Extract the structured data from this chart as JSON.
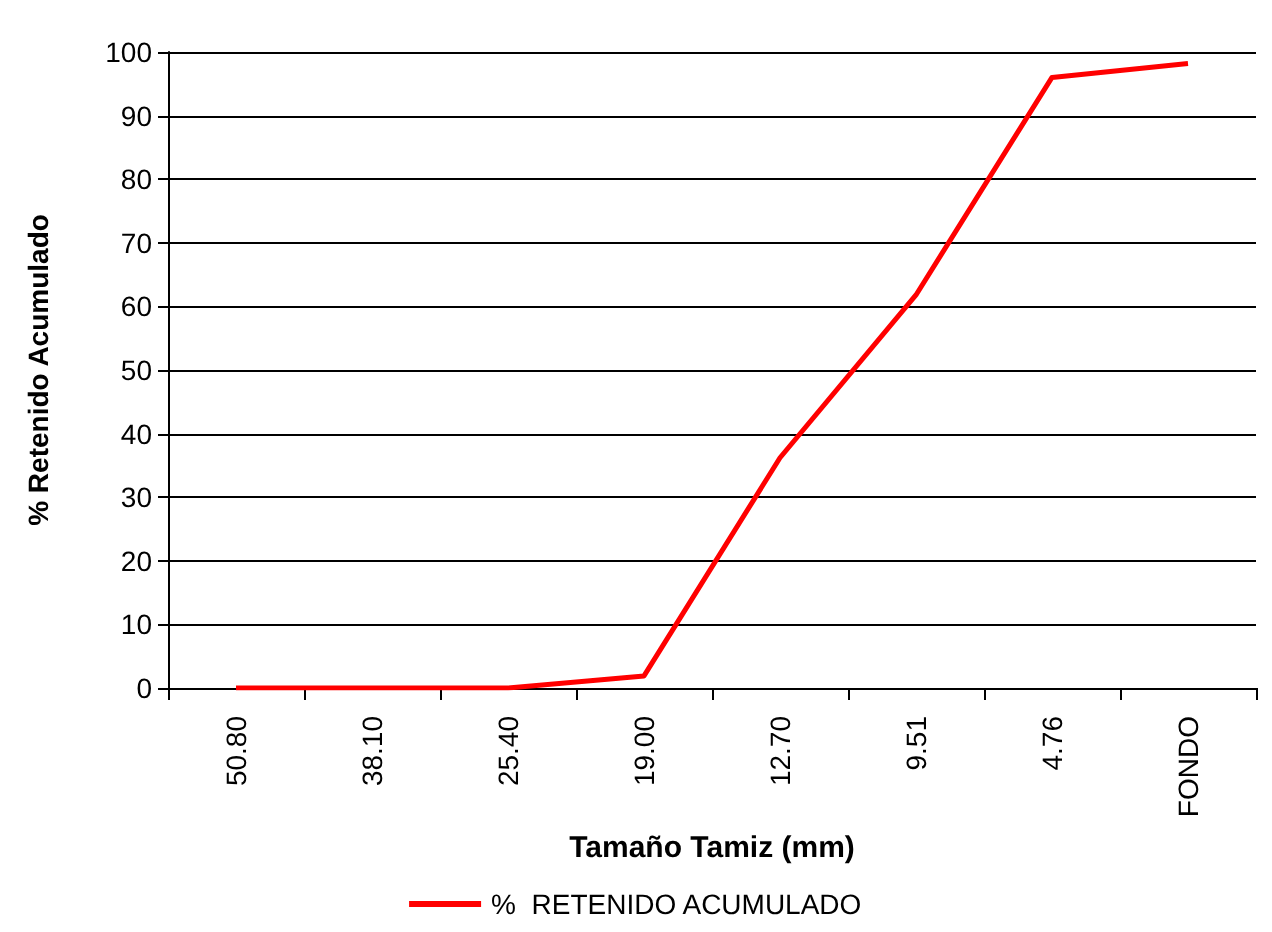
{
  "chart_data": {
    "type": "line",
    "xlabel": "Tamaño Tamiz (mm)",
    "ylabel": "% Retenido Acumulado",
    "categories": [
      "50.80",
      "38.10",
      "25.40",
      "19.00",
      "12.70",
      "9.51",
      "4.76",
      "FONDO"
    ],
    "series": [
      {
        "name": "%  RETENIDO ACUMULADO",
        "color": "#ff0000",
        "values": [
          0,
          0,
          0,
          1.9,
          36.2,
          61.8,
          96.0,
          98.2
        ]
      }
    ],
    "ylim": [
      0,
      100
    ],
    "yticks": [
      0,
      10,
      20,
      30,
      40,
      50,
      60,
      70,
      80,
      90,
      100
    ],
    "grid": "y",
    "legend": "bottom",
    "marker": "none",
    "line_style": "solid"
  }
}
